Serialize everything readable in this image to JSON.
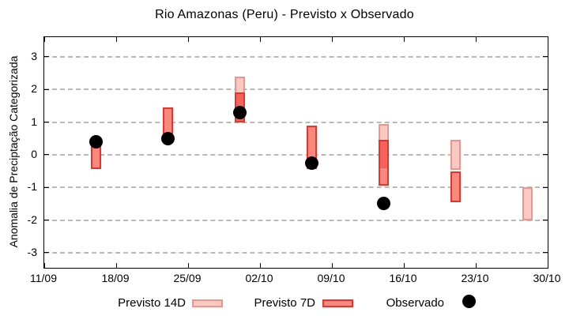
{
  "title": "Rio Amazonas (Peru) - Previsto x Observado",
  "y_axis": {
    "label": "Anomalia de Preciptação Categorizada",
    "ticks": [
      3,
      2,
      1,
      0,
      -1,
      -2,
      -3
    ]
  },
  "x_axis": {
    "ticks": [
      {
        "label": "11/09",
        "day": 0
      },
      {
        "label": "18/09",
        "day": 7
      },
      {
        "label": "25/09",
        "day": 14
      },
      {
        "label": "02/10",
        "day": 21
      },
      {
        "label": "09/10",
        "day": 28
      },
      {
        "label": "16/10",
        "day": 35
      },
      {
        "label": "23/10",
        "day": 42
      },
      {
        "label": "30/10",
        "day": 49
      }
    ]
  },
  "legend": {
    "previsto14d": "Previsto 14D",
    "previsto7d": "Previsto 7D",
    "observado": "Observado"
  },
  "chart_data": {
    "type": "bar",
    "subtype": "floating-range-bars-with-scatter-overlay",
    "title": "Rio Amazonas (Peru) - Previsto x Observado",
    "xlabel": "",
    "ylabel": "Anomalia de Preciptação Categorizada",
    "xlim_days": [
      0,
      49
    ],
    "ylim": [
      -3.46,
      3.6
    ],
    "grid": "horizontal-dashed",
    "legend_position": "below-plot",
    "series_info": [
      {
        "name": "Previsto 14D",
        "type": "range-bar",
        "fill": "#f9c9c3",
        "border": "#f0938b"
      },
      {
        "name": "Previsto 7D",
        "type": "range-bar",
        "fill": "#f9897f",
        "border": "#e8322a"
      },
      {
        "name": "Observado",
        "type": "scatter-dot",
        "color": "#000000"
      }
    ],
    "groups": [
      {
        "date": "16/09",
        "day": 5,
        "previsto14d": null,
        "previsto7d": [
          -0.45,
          0.35
        ],
        "observado": 0.4
      },
      {
        "date": "23/09",
        "day": 12,
        "previsto14d": null,
        "previsto7d": [
          0.45,
          1.45
        ],
        "observado": 0.5
      },
      {
        "date": "30/09",
        "day": 19,
        "previsto14d": [
          1.0,
          2.4
        ],
        "previsto7d": [
          1.0,
          1.9
        ],
        "observado": 1.3
      },
      {
        "date": "07/10",
        "day": 26,
        "previsto14d": null,
        "previsto7d": [
          -0.45,
          0.9
        ],
        "observado": -0.25
      },
      {
        "date": "14/10",
        "day": 33,
        "previsto14d": [
          -0.45,
          0.95
        ],
        "previsto7d": [
          -0.95,
          0.45
        ],
        "observado": -1.5
      },
      {
        "date": "21/10",
        "day": 40,
        "previsto14d": [
          -0.45,
          0.45
        ],
        "previsto7d": [
          -1.45,
          -0.5
        ],
        "observado": null
      },
      {
        "date": "28/10",
        "day": 47,
        "previsto14d": [
          -2.0,
          -1.0
        ],
        "previsto7d": null,
        "observado": null
      }
    ],
    "colors": {
      "previsto14d_fill": "#f9c9c3",
      "previsto14d_border": "#f0938b",
      "previsto7d_fill": "#f9897f",
      "previsto7d_border": "#e8322a",
      "overlap_fill": "#f4645d",
      "observado": "#000000",
      "grid": "#b9b9b9",
      "axis": "#000000"
    }
  }
}
